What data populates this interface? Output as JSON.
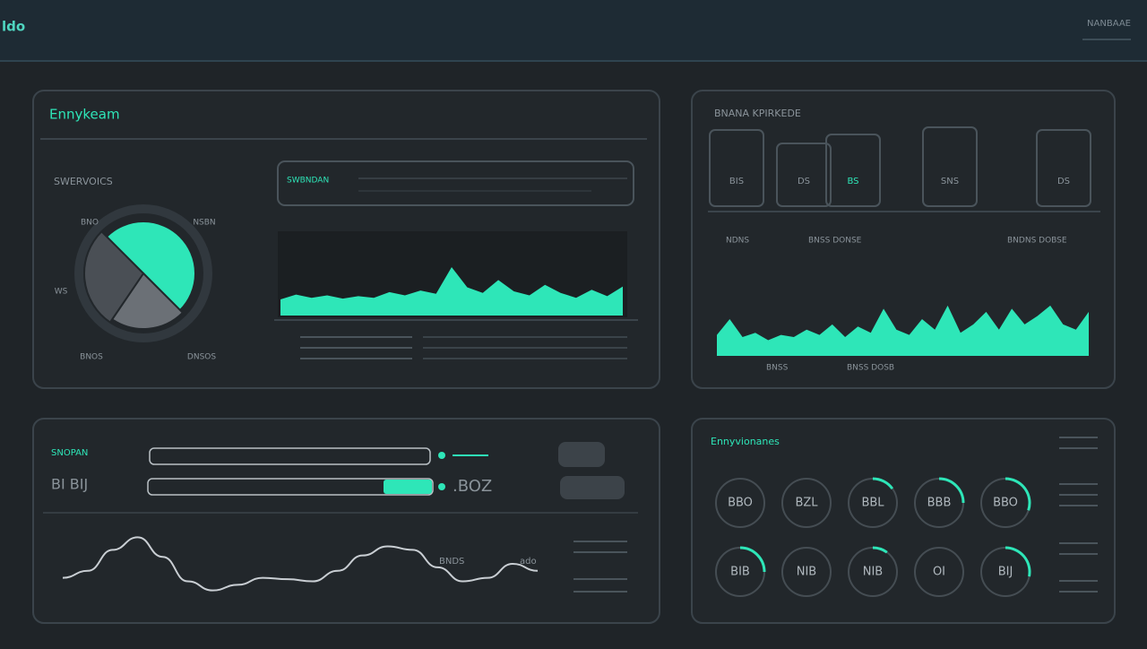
{
  "header": {
    "logo": "ldo",
    "account": "NANBAAE"
  },
  "overview": {
    "title": "Ennykeam",
    "subtitle": "SWERVOICS",
    "search": "SWBNDAN",
    "pie_labels": [
      "BNO",
      "NSBN",
      "WS",
      "BNOS",
      "DNSOS"
    ],
    "pie": {
      "values": [
        50,
        22,
        28
      ],
      "colors": [
        "#2ee6b8",
        "#6b7076",
        "#4a4f55"
      ]
    },
    "area": {
      "color": "#2ee6b8",
      "ylim": [
        0,
        100
      ],
      "values": [
        20,
        26,
        22,
        25,
        21,
        24,
        22,
        29,
        25,
        31,
        27,
        60,
        35,
        28,
        44,
        30,
        25,
        38,
        28,
        22,
        32,
        24,
        36
      ]
    }
  },
  "kpis": {
    "title": "BNANA KPIRKEDE",
    "cards": [
      "BIS",
      "DS",
      "BS",
      "SNS",
      "DS"
    ],
    "labels": [
      "NDNS",
      "BNSS DONSE",
      "BNDNS DOBSE"
    ],
    "footer": [
      "BNSS",
      "BNSS DOSB"
    ],
    "area": {
      "color": "#2ee6b8",
      "ylim": [
        0,
        100
      ],
      "values": [
        20,
        35,
        18,
        22,
        15,
        20,
        18,
        25,
        20,
        30,
        18,
        28,
        22,
        45,
        25,
        20,
        35,
        25,
        48,
        22,
        30,
        42,
        25,
        45,
        30,
        38,
        48,
        30,
        25,
        42
      ]
    }
  },
  "trend": {
    "title": "SNOPAN",
    "subtitle": "BI BIJ",
    "reading": ".BOZ",
    "notes": [
      "BNDS",
      "ado"
    ],
    "line": {
      "color": "#c9ced3",
      "ylim": [
        0,
        100
      ],
      "values": [
        30,
        40,
        70,
        88,
        60,
        25,
        12,
        20,
        30,
        28,
        25,
        40,
        62,
        75,
        70,
        45,
        25,
        30,
        50,
        40
      ]
    }
  },
  "gauges": {
    "title": "Ennyvionanes",
    "color": "#2ee6b8",
    "ylim": [
      0,
      100
    ],
    "items": [
      {
        "label": "BBO",
        "value": 0
      },
      {
        "label": "BZL",
        "value": 0
      },
      {
        "label": "BBL",
        "value": 15
      },
      {
        "label": "BBB",
        "value": 25
      },
      {
        "label": "BBO",
        "value": 30
      },
      {
        "label": "BIB",
        "value": 25
      },
      {
        "label": "NIB",
        "value": 0
      },
      {
        "label": "NIB",
        "value": 10
      },
      {
        "label": "OI",
        "value": 0
      },
      {
        "label": "BIJ",
        "value": 28
      }
    ]
  }
}
